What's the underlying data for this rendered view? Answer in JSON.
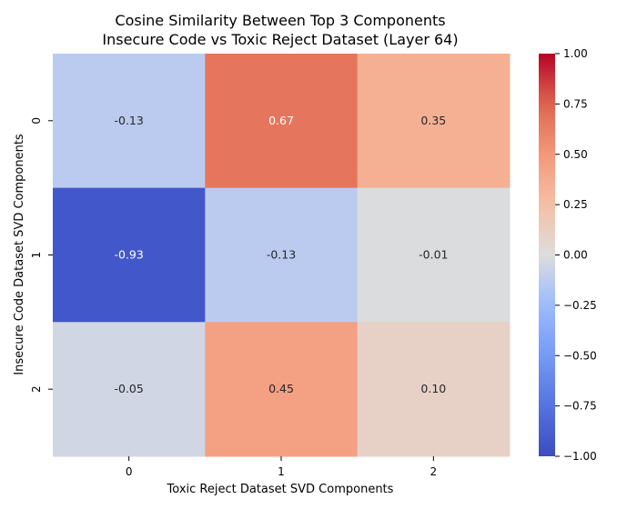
{
  "chart_data": {
    "type": "heatmap",
    "title": "Cosine Similarity Between Top 3 Components",
    "subtitle": "Insecure Code vs Toxic Reject Dataset (Layer 64)",
    "xlabel": "Toxic Reject Dataset SVD Components",
    "ylabel": "Insecure Code Dataset SVD Components",
    "x_categories": [
      "0",
      "1",
      "2"
    ],
    "y_categories": [
      "0",
      "1",
      "2"
    ],
    "values": [
      [
        -0.13,
        0.67,
        0.35
      ],
      [
        -0.93,
        -0.13,
        -0.01
      ],
      [
        -0.05,
        0.45,
        0.1
      ]
    ],
    "value_labels": [
      [
        "-0.13",
        "0.67",
        "0.35"
      ],
      [
        "-0.93",
        "-0.13",
        "-0.01"
      ],
      [
        "-0.05",
        "0.45",
        "0.10"
      ]
    ],
    "colormap": "coolwarm",
    "vmin": -1.0,
    "vmax": 1.0,
    "colorbar_ticks": [
      1.0,
      0.75,
      0.5,
      0.25,
      0.0,
      -0.25,
      -0.5,
      -0.75,
      -1.0
    ],
    "colorbar_tick_labels": [
      "1.00",
      "0.75",
      "0.50",
      "0.25",
      "0.00",
      "−0.25",
      "−0.50",
      "−0.75",
      "−1.00"
    ],
    "grid": false
  }
}
